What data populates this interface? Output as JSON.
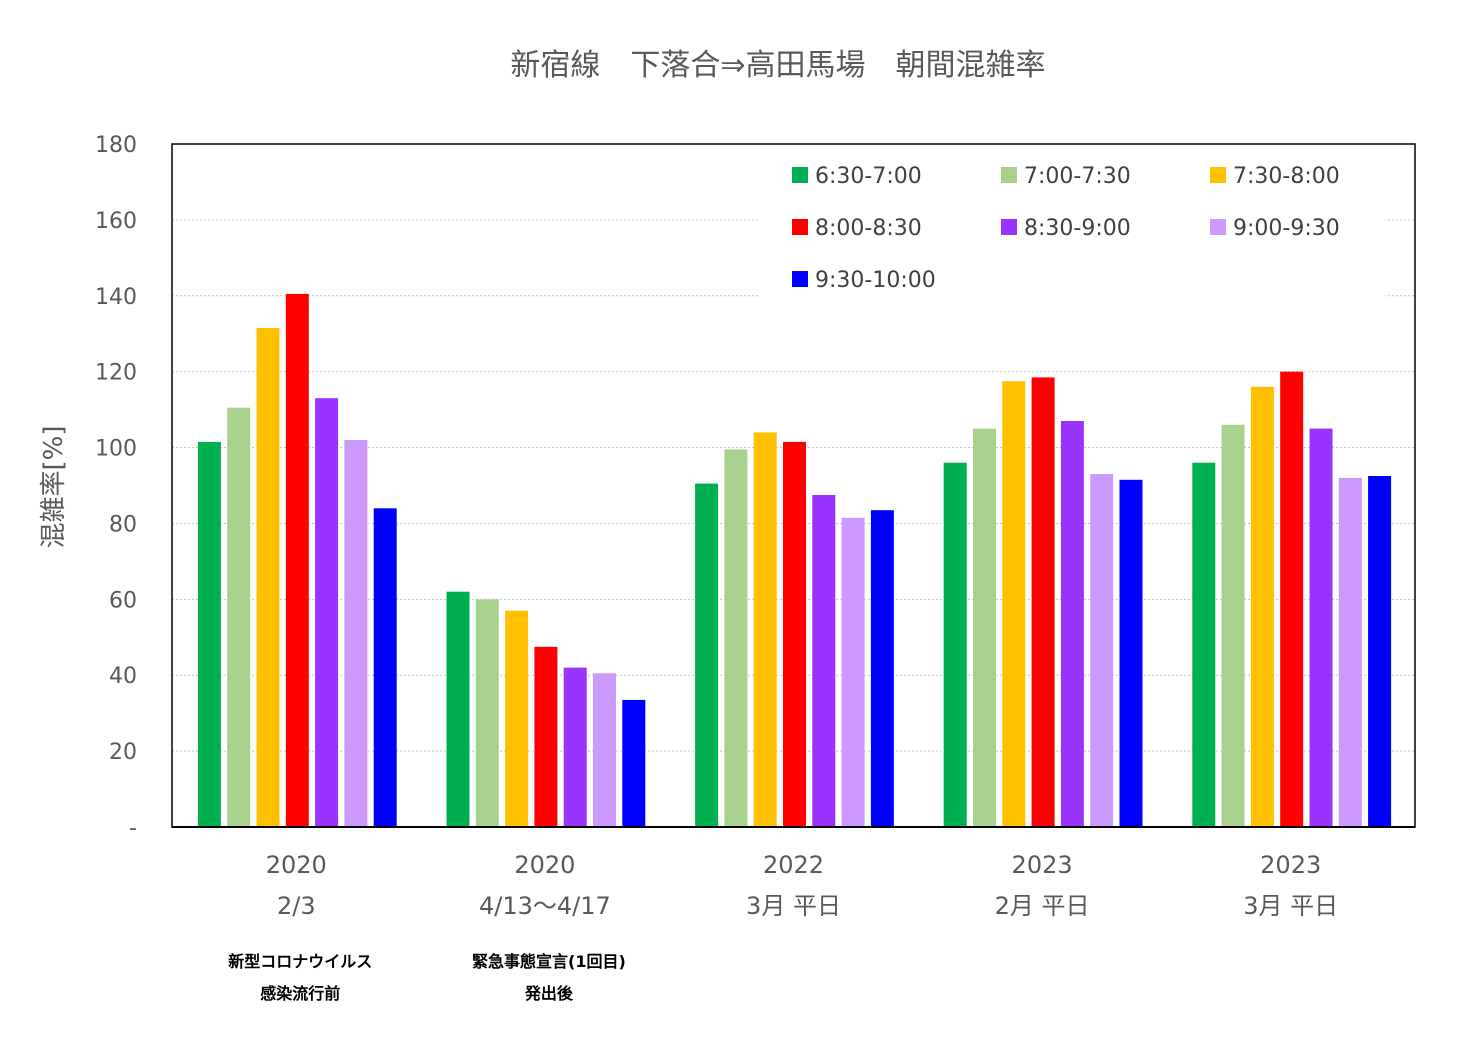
{
  "chart_data": {
    "type": "bar",
    "title": "新宿線　下落合⇒高田馬場　朝間混雑率",
    "ylabel": "混雑率[%]",
    "xlabel": "",
    "ylim": [
      0,
      180
    ],
    "y_ticks": [
      "-",
      "20",
      "40",
      "60",
      "80",
      "100",
      "120",
      "140",
      "160",
      "180"
    ],
    "grid": true,
    "legend_position": "top-right",
    "categories": [
      {
        "line1": "2020",
        "line2": "2/3"
      },
      {
        "line1": "2020",
        "line2": "4/13～4/17"
      },
      {
        "line1": "2022",
        "line2": "3月 平日"
      },
      {
        "line1": "2023",
        "line2": "2月 平日"
      },
      {
        "line1": "2023",
        "line2": "3月 平日"
      }
    ],
    "annotations": [
      {
        "category_index": 0,
        "lines": [
          "新型コロナウイルス",
          "感染流行前"
        ]
      },
      {
        "category_index": 1,
        "lines": [
          "緊急事態宣言(1回目)",
          "発出後"
        ]
      }
    ],
    "series": [
      {
        "name": "6:30-7:00",
        "color": "#00b050",
        "values": [
          101.5,
          62,
          90.5,
          96,
          96
        ]
      },
      {
        "name": "7:00-7:30",
        "color": "#a9d18e",
        "values": [
          110.5,
          60,
          99.5,
          105,
          106
        ]
      },
      {
        "name": "7:30-8:00",
        "color": "#ffc000",
        "values": [
          131.5,
          57,
          104,
          117.5,
          116
        ]
      },
      {
        "name": "8:00-8:30",
        "color": "#ff0000",
        "values": [
          140.5,
          47.5,
          101.5,
          118.5,
          120
        ]
      },
      {
        "name": "8:30-9:00",
        "color": "#9933ff",
        "values": [
          113,
          42,
          87.5,
          107,
          105
        ]
      },
      {
        "name": "9:00-9:30",
        "color": "#cc99ff",
        "values": [
          102,
          40.5,
          81.5,
          93,
          92
        ]
      },
      {
        "name": "9:30-10:00",
        "color": "#0000ff",
        "values": [
          84,
          33.5,
          83.5,
          91.5,
          92.5
        ]
      }
    ]
  }
}
